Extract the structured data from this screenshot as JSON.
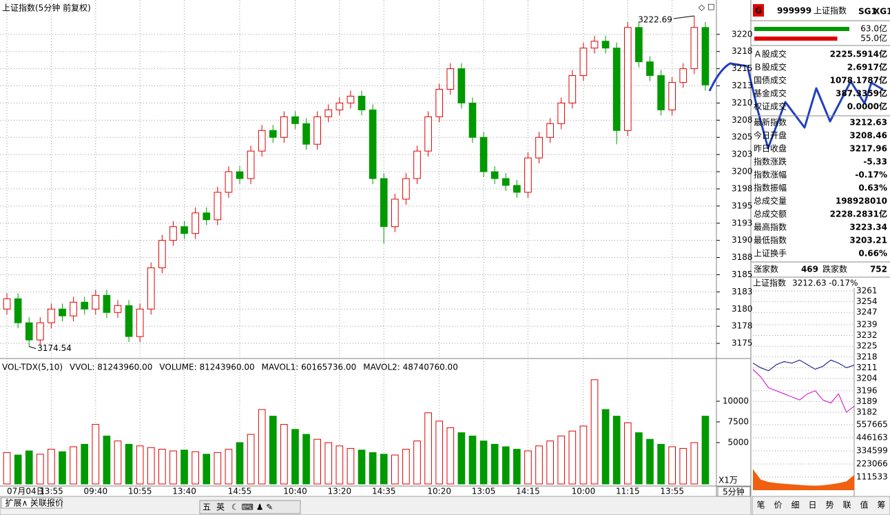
{
  "chart_data": [
    {
      "type": "candlestick",
      "title": "上证指数(5分钟 前复权)",
      "categories": [
        "07月04日",
        null,
        null,
        null,
        "13:55",
        null,
        null,
        null,
        "09:40",
        null,
        null,
        null,
        "10:55",
        null,
        null,
        null,
        "13:40",
        null,
        null,
        null,
        null,
        "14:55",
        null,
        null,
        null,
        null,
        "10:40",
        null,
        null,
        null,
        "13:20",
        null,
        null,
        null,
        "14:35",
        null,
        null,
        null,
        null,
        "10:20",
        null,
        null,
        null,
        "13:05",
        null,
        null,
        null,
        "14:15",
        null,
        null,
        null,
        null,
        "10:00",
        null,
        null,
        null,
        "11:15",
        null,
        null,
        null,
        "13:55",
        null,
        null,
        null
      ],
      "open": [
        3180,
        3181.5,
        3178,
        3175.5,
        3178,
        3180,
        3179,
        3181,
        3180,
        3182,
        3179.5,
        3180.5,
        3176,
        3180,
        3186,
        3190,
        3192,
        3191,
        3194,
        3193,
        3197,
        3200,
        3199,
        3203,
        3206,
        3205,
        3208,
        3207,
        3204,
        3208,
        3209,
        3210,
        3211,
        3209,
        3199,
        3192,
        3196,
        3199,
        3203,
        3208,
        3212,
        3215,
        3210,
        3205,
        3200,
        3199,
        3198,
        3197,
        3202,
        3205,
        3207,
        3210,
        3214,
        3218,
        3219,
        3218,
        3206,
        3221,
        3216,
        3214,
        3209,
        3213,
        3215,
        3221
      ],
      "high": [
        3182.3,
        3182.3,
        3178.8,
        3178.8,
        3180.8,
        3180.8,
        3181.8,
        3181.8,
        3182.8,
        3182.8,
        3181.3,
        3181.3,
        3180.8,
        3186.8,
        3190.8,
        3192.8,
        3192.8,
        3194.8,
        3194.8,
        3197.8,
        3200.8,
        3200.8,
        3203.8,
        3206.8,
        3206.8,
        3208.8,
        3208.8,
        3207.8,
        3208.8,
        3209.8,
        3210.8,
        3211.8,
        3211.8,
        3209.8,
        3199.8,
        3196.8,
        3199.8,
        3203.8,
        3208.8,
        3212.8,
        3215.8,
        3215.8,
        3210.8,
        3205.8,
        3200.8,
        3199.8,
        3198.8,
        3202.8,
        3205.8,
        3207.8,
        3210.8,
        3214.8,
        3218.8,
        3219.8,
        3219.8,
        3218.8,
        3221.8,
        3221.8,
        3216.8,
        3214.8,
        3213.8,
        3215.8,
        3222.69,
        3221.8
      ],
      "low": [
        3179.2,
        3177.2,
        3174.54,
        3174.7,
        3177.2,
        3178.2,
        3178.2,
        3179.2,
        3179.2,
        3178.7,
        3178.7,
        3175.2,
        3175.2,
        3179.2,
        3185.2,
        3189.2,
        3190.2,
        3190.2,
        3192.2,
        3192.2,
        3196.2,
        3198.2,
        3198.2,
        3202.2,
        3204.2,
        3204.2,
        3206.2,
        3203.2,
        3203.2,
        3207.2,
        3208.2,
        3209.2,
        3208.2,
        3198.2,
        3189.5,
        3191.2,
        3195.2,
        3198.2,
        3202.2,
        3207.2,
        3211.2,
        3209.2,
        3204.2,
        3199.2,
        3198.2,
        3197.2,
        3196.2,
        3196.2,
        3201.2,
        3204.2,
        3206.2,
        3209.2,
        3213.2,
        3217.2,
        3217.2,
        3204,
        3205.2,
        3215.2,
        3213.2,
        3208.2,
        3208.2,
        3212.2,
        3214.2,
        3211.8
      ],
      "close": [
        3181.5,
        3178,
        3175.5,
        3178,
        3180,
        3179,
        3181,
        3180,
        3182,
        3179.5,
        3180.5,
        3176,
        3180,
        3186,
        3190,
        3192,
        3191,
        3194,
        3193,
        3197,
        3200,
        3199,
        3203,
        3206,
        3205,
        3208,
        3207,
        3204,
        3208,
        3209,
        3210,
        3211,
        3209,
        3199,
        3192,
        3196,
        3199,
        3203,
        3208,
        3212,
        3215,
        3210,
        3205,
        3200,
        3199,
        3198,
        3197,
        3202,
        3205,
        3207,
        3210,
        3214,
        3218,
        3219,
        3218,
        3206,
        3221,
        3216,
        3214,
        3209,
        3213,
        3215,
        3221,
        3212.63
      ],
      "up_color": "#e00000",
      "down_color": "#009900",
      "ylim": [
        3173,
        3225
      ],
      "yticks": [
        3220,
        {
          "value": 3217.5,
          "label": "3218"
        },
        3215,
        {
          "value": 3212.5,
          "label": "3213"
        },
        3210,
        {
          "value": 3207.5,
          "label": "3208"
        },
        3205,
        {
          "value": 3202.5,
          "label": "3203"
        },
        3200,
        {
          "value": 3197.5,
          "label": "3198"
        },
        3195,
        {
          "value": 3192.5,
          "label": "3193"
        },
        3190,
        {
          "value": 3187.5,
          "label": "3188"
        },
        3185,
        {
          "value": 3182.5,
          "label": "3183"
        },
        3180,
        {
          "value": 3177.5,
          "label": "3178"
        },
        3175
      ],
      "grid": true
    },
    {
      "type": "volume",
      "legend": [
        {
          "text": "VOL-TDX(5,10)",
          "color": "#000000"
        },
        {
          "text": "VVOL: 81243960.00",
          "color": "#000080"
        },
        {
          "text": "VOLUME: 81243960.00",
          "color": "#cc00cc"
        },
        {
          "text": "MAVOL1: 60165736.00",
          "color": "#cc00cc"
        },
        {
          "text": "MAVOL2: 48740760.00",
          "color": "#808080"
        }
      ],
      "values": [
        3800,
        3500,
        4000,
        3600,
        4200,
        3900,
        4500,
        4800,
        7200,
        5800,
        5200,
        4800,
        4600,
        4400,
        4200,
        4000,
        4100,
        3900,
        3600,
        3800,
        4200,
        5000,
        6000,
        9000,
        8200,
        7200,
        6600,
        6000,
        5400,
        5000,
        4600,
        4300,
        4100,
        3800,
        3600,
        3500,
        4200,
        5200,
        8600,
        7600,
        6800,
        6200,
        5800,
        5200,
        4800,
        4500,
        4200,
        4000,
        4600,
        5200,
        5800,
        6400,
        7000,
        12600,
        9000,
        8200,
        7400,
        6200,
        5400,
        4800,
        4500,
        4300,
        5000,
        8200
      ],
      "ylim": [
        0,
        15000
      ],
      "yticks": [
        5000,
        7500,
        10000
      ],
      "unit": "X1万",
      "period": "5分钟"
    }
  ],
  "quote_panel": {
    "badge": "G",
    "code": "999999",
    "name": "上证指数",
    "tags": [
      "SG1",
      "XG1"
    ],
    "flow_bars": [
      {
        "value": 63.0,
        "label": "63.0亿",
        "color": "#009900"
      },
      {
        "value": 55.0,
        "label": "55.0亿",
        "color": "#e00000"
      }
    ],
    "turnover": [
      {
        "label": "Ａ股成交",
        "value": "2225.5914亿"
      },
      {
        "label": "Ｂ股成交",
        "value": "2.6917亿"
      },
      {
        "label": "国债成交",
        "value": "1078.1787亿"
      },
      {
        "label": "基金成交",
        "value": "387.3359亿"
      },
      {
        "label": "权证成交",
        "value": "0.0000亿"
      }
    ],
    "stats": [
      {
        "label": "最新指数",
        "value": "3212.63",
        "color": "#009900"
      },
      {
        "label": "今日开盘",
        "value": "3208.46",
        "color": "#009900"
      },
      {
        "label": "昨日收盘",
        "value": "3217.96",
        "color": "#000000"
      },
      {
        "label": "指数涨跌",
        "value": "-5.33",
        "color": "#009900"
      },
      {
        "label": "指数涨幅",
        "value": "-0.17%",
        "color": "#009900"
      },
      {
        "label": "指数振幅",
        "value": "0.63%",
        "color": "#000000"
      },
      {
        "label": "总成交量",
        "value": "198928010",
        "color": "#e00000"
      },
      {
        "label": "总成交额",
        "value": "2228.2831亿",
        "color": "#e00000"
      },
      {
        "label": "最高指数",
        "value": "3223.34",
        "color": "#e00000"
      },
      {
        "label": "最低指数",
        "value": "3203.21",
        "color": "#009900"
      },
      {
        "label": "上证换手",
        "value": "0.66%",
        "color": "#000000"
      }
    ],
    "breadth": [
      {
        "label": "涨家数",
        "value": "469",
        "color": "#e00000"
      },
      {
        "label": "跌家数",
        "value": "752",
        "color": "#009900"
      }
    ]
  },
  "mini_chart": {
    "title": "上证指数",
    "price": "3212.63",
    "change": "-0.17%",
    "ylim": [
      3182,
      3261
    ],
    "yticks": [
      3261,
      3254,
      3247,
      3239,
      3232,
      3225,
      3218,
      3211,
      3204,
      3196,
      3189,
      3182
    ],
    "vlim": [
      0,
      557665
    ],
    "vticks": [
      557665,
      446163,
      334599,
      223066,
      111533
    ],
    "index_line": [
      3214,
      3211,
      3209,
      3213,
      3215,
      3214,
      3216,
      3213,
      3210,
      3212,
      3216,
      3214,
      3211,
      3212.63
    ],
    "avg_line": [
      3210,
      3205,
      3198,
      3196,
      3194,
      3192,
      3190,
      3194,
      3196,
      3190,
      3188,
      3194,
      3182,
      3186
    ],
    "volume": [
      180000,
      90000,
      70000,
      60000,
      55000,
      50000,
      45000,
      40000,
      38000,
      42000,
      50000,
      60000,
      75000,
      130000
    ]
  },
  "toolbar": {
    "left_tabs": [
      "扩展∧",
      "关联报价"
    ],
    "ime": [
      "五",
      "英"
    ],
    "right_tabs": [
      "笔",
      "价",
      "细",
      "日",
      "势",
      "联",
      "值",
      "筹"
    ]
  }
}
